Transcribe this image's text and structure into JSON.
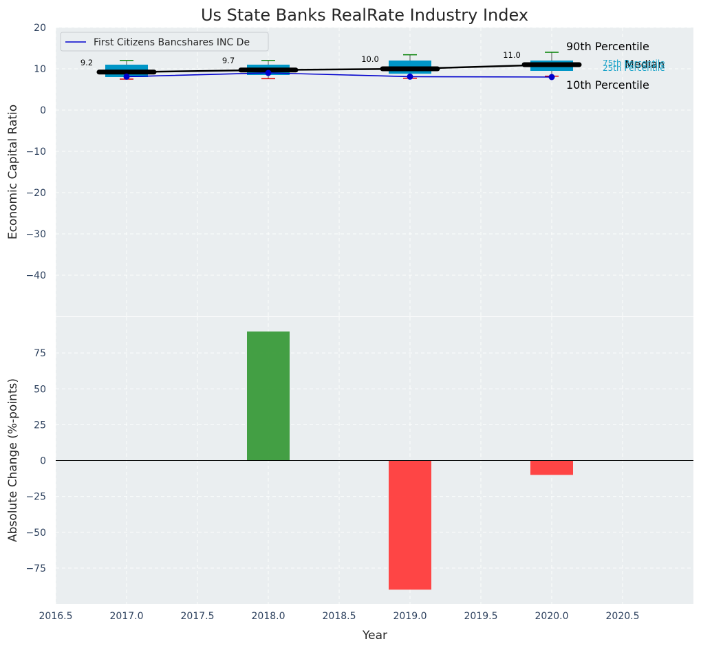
{
  "chart_data": [
    {
      "type": "box",
      "title": "Us State Banks RealRate Industry Index",
      "xlabel": "",
      "ylabel": "Economic Capital Ratio",
      "xlim": [
        2016.5,
        2021.0
      ],
      "ylim": [
        -50,
        20
      ],
      "yticks": [
        20,
        10,
        0,
        -10,
        -20,
        -30,
        -40
      ],
      "boxes": [
        {
          "year": 2017,
          "p10": 7.5,
          "q25": 8.0,
          "median": 9.2,
          "q75": 11.0,
          "p90": 12.0,
          "median_label": "9.2"
        },
        {
          "year": 2018,
          "p10": 7.6,
          "q25": 8.5,
          "median": 9.7,
          "q75": 11.0,
          "p90": 12.0,
          "median_label": "9.7"
        },
        {
          "year": 2019,
          "p10": 7.7,
          "q25": 8.8,
          "median": 10.0,
          "q75": 12.0,
          "p90": 13.4,
          "median_label": "10.0"
        },
        {
          "year": 2020,
          "p10": 8.2,
          "q25": 9.5,
          "median": 11.0,
          "q75": 12.0,
          "p90": 14.0,
          "median_label": "11.0"
        }
      ],
      "series": [
        {
          "name": "First Citizens Bancshares INC De",
          "x": [
            2017,
            2018,
            2019,
            2020
          ],
          "values": [
            8.1,
            9.0,
            8.1,
            8.0
          ],
          "color": "#0000cc"
        }
      ],
      "annotations": {
        "p90": "90th Percentile",
        "median": "Median",
        "p10": "10th Percentile",
        "q75": "75th Percentile",
        "q25": "25th Percentile"
      },
      "legend": "top-left",
      "colors": {
        "box": "#0096c7",
        "median": "#000000",
        "p90": "#008000",
        "p10": "#e00000",
        "label_quartile": "#17a2c8"
      }
    },
    {
      "type": "bar",
      "title": "",
      "xlabel": "Year",
      "ylabel": "Absolute Change (%-points)",
      "xlim": [
        2016.5,
        2021.0
      ],
      "ylim": [
        -100,
        100
      ],
      "yticks": [
        75,
        50,
        25,
        0,
        -25,
        -50,
        -75
      ],
      "xticks": [
        "2016.5",
        "2017.0",
        "2017.5",
        "2018.0",
        "2018.5",
        "2019.0",
        "2019.5",
        "2020.0",
        "2020.5"
      ],
      "x": [
        2018,
        2019,
        2020
      ],
      "values": [
        90,
        -90,
        -10
      ],
      "colors": {
        "positive": "#3a9a3a",
        "negative": "#ff3b3b"
      }
    }
  ]
}
